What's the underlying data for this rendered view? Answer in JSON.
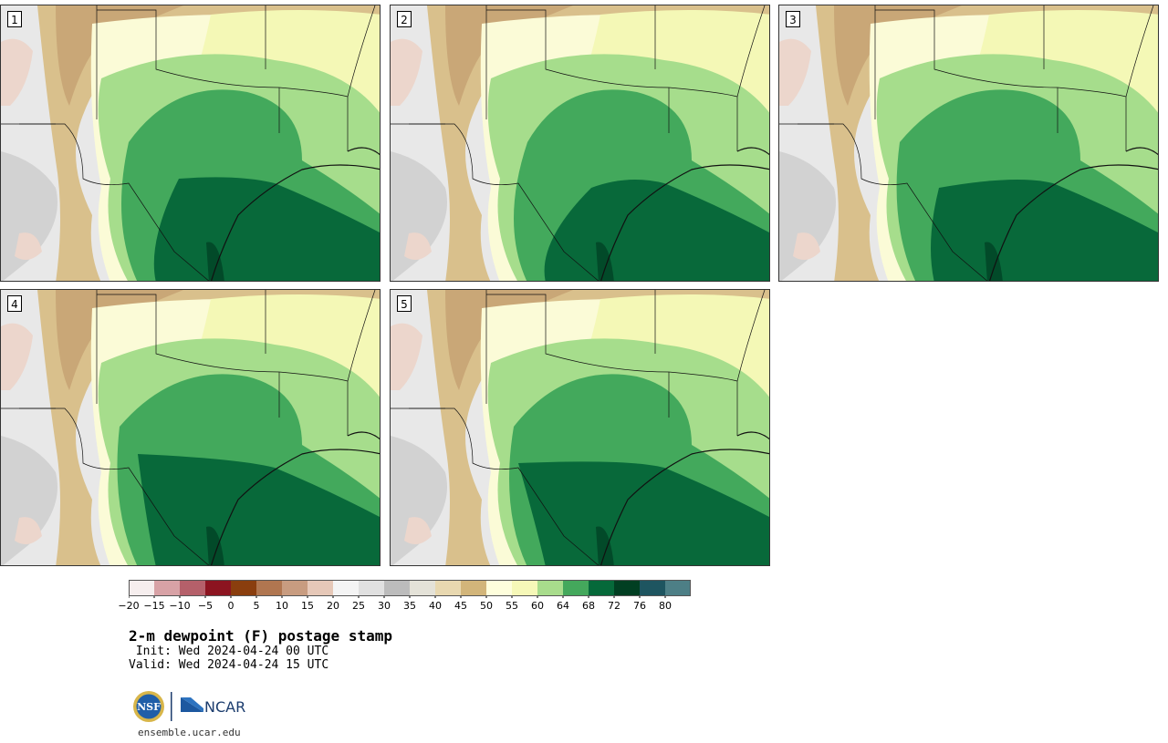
{
  "panels": [
    {
      "label": "1"
    },
    {
      "label": "2"
    },
    {
      "label": "3"
    },
    {
      "label": "4"
    },
    {
      "label": "5"
    }
  ],
  "colorbar": {
    "ticks": [
      "−20",
      "−15",
      "−10",
      "−5",
      "0",
      "5",
      "10",
      "15",
      "20",
      "25",
      "30",
      "35",
      "40",
      "45",
      "50",
      "55",
      "60",
      "64",
      "68",
      "72",
      "76",
      "80"
    ],
    "colors": [
      "#f6eeee",
      "#d8a2a6",
      "#b5606a",
      "#8c1420",
      "#8a3e0e",
      "#b07650",
      "#c89c80",
      "#e6c8b8",
      "#f4f4f4",
      "#e0e0e0",
      "#bcbcbc",
      "#e4e2d8",
      "#e8d8b0",
      "#d2b57a",
      "#fefedc",
      "#f6f8b8",
      "#a8dc8c",
      "#44a85c",
      "#06693a",
      "#013f22",
      "#1e5560",
      "#4d7f86"
    ]
  },
  "title": "2-m dewpoint (F) postage stamp",
  "init_line": " Init: Wed 2024-04-24 00 UTC",
  "valid_line": "Valid: Wed 2024-04-24 15 UTC",
  "logos": {
    "nsf": "NSF",
    "ncar": "NCAR"
  },
  "url": "ensemble.ucar.edu"
}
